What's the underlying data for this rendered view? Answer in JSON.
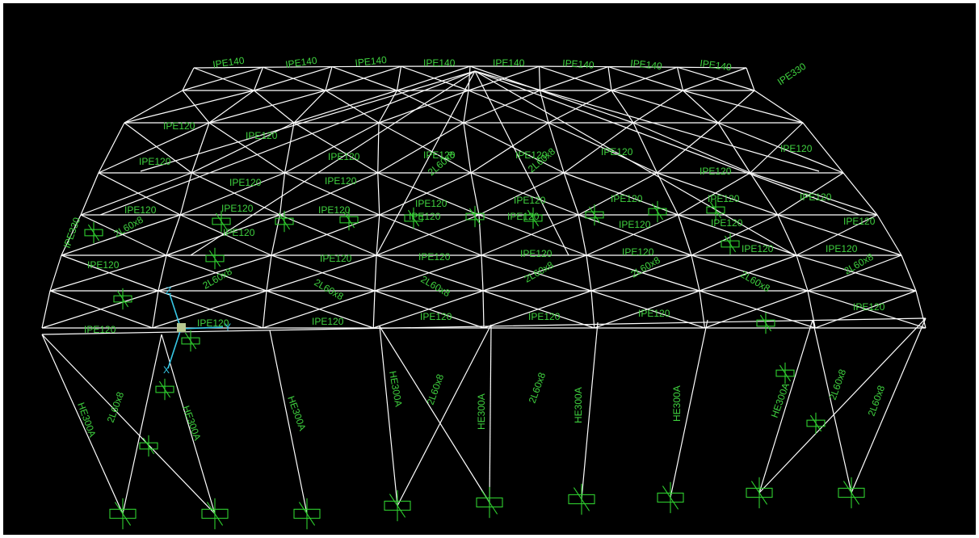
{
  "colors": {
    "background": "#000000",
    "frame": "#ffffff",
    "section_label": "#3fd23f",
    "support": "#2fcf2f",
    "axis_triad": "#37c8e6",
    "axis_origin": "#b8c890"
  },
  "model": {
    "sections": {
      "roof_purlin": "IPE120",
      "roof_purlin_top": "IPE140",
      "rafter": "IPE330",
      "column": "HE300A",
      "brace": "2L60x8"
    },
    "roof_labels": [
      "IPE140",
      "IPE140",
      "IPE140",
      "IPE140",
      "IPE140",
      "IPE140",
      "IPE140",
      "IPE140",
      "IPE330",
      "IPE330",
      "IPE120",
      "IPE120",
      "IPE120",
      "IPE120",
      "IPE120",
      "IPE120",
      "IPE120",
      "IPE120",
      "IPE120",
      "IPE120",
      "IPE120",
      "IPE120",
      "IPE120",
      "IPE120",
      "IPE120",
      "IPE120",
      "IPE120",
      "IPE120",
      "IPE120",
      "IPE120",
      "IPE120",
      "IPE120",
      "IPE120",
      "IPE120",
      "IPE120",
      "IPE120",
      "IPE120",
      "IPE120",
      "IPE120",
      "IPE120",
      "IPE120",
      "IPE120",
      "IPE120",
      "IPE120",
      "2L60x8",
      "2L60x8",
      "2L60x8",
      "2L60x8",
      "2L60x8",
      "2L60x8",
      "2L60x8",
      "2L60x8",
      "2L60x8",
      "2L60x8"
    ],
    "column_labels": [
      "HE300A",
      "HE300A",
      "HE300A",
      "HE300A",
      "HE300A",
      "HE300A",
      "HE300A",
      "HE300A",
      "2L60x8",
      "2L60x8",
      "2L60x8",
      "2L60x8",
      "2L60x8"
    ],
    "axes": {
      "x": "X",
      "y": "Y",
      "z": "Z"
    }
  }
}
